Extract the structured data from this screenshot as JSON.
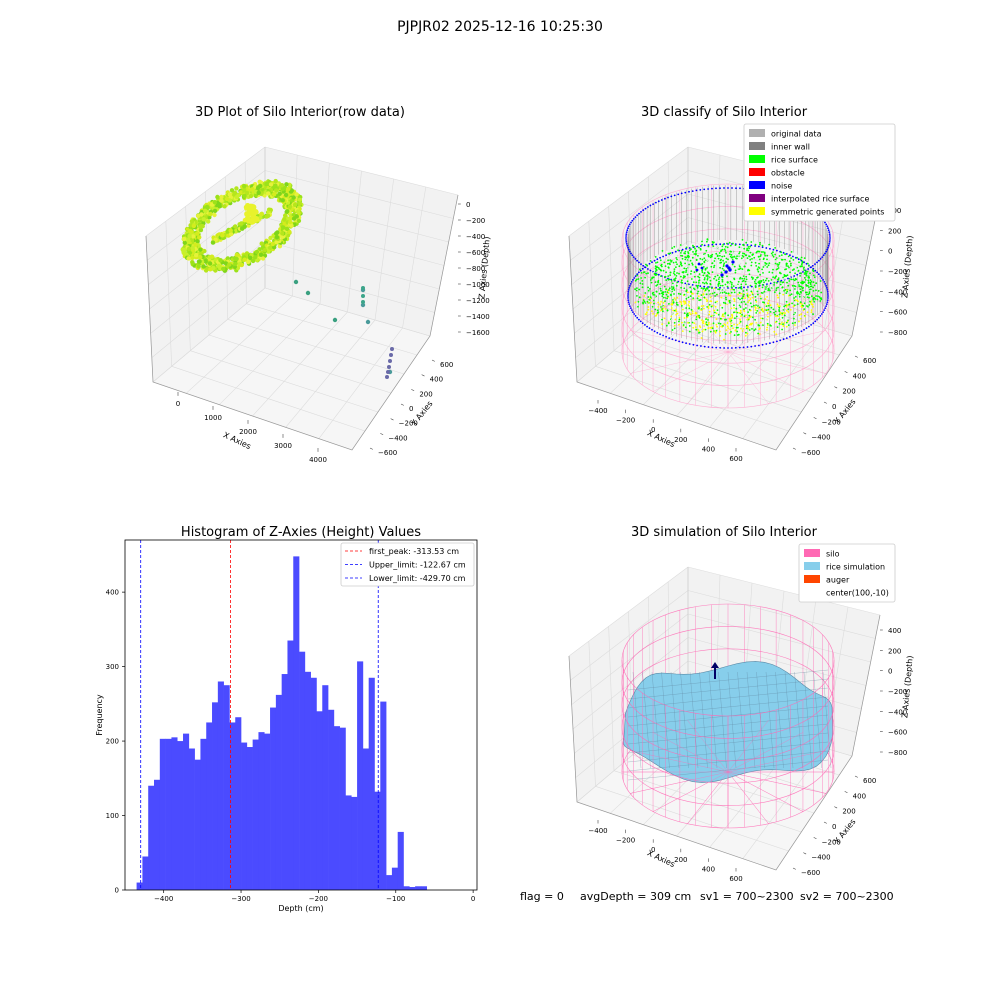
{
  "suptitle": "PJPJR02 2025-12-16 10:25:30",
  "footer": {
    "flag": "flag = 0",
    "avg_depth": "avgDepth = 309 cm",
    "sv1": "sv1 = 700~2300",
    "sv2": "sv2 = 700~2300"
  },
  "colors": {
    "lime": "#00ff00",
    "yellow": "#ffff00",
    "noise": "#0000ff",
    "silo_pink": "#ff69b4",
    "rice_blue": "#87ceeb",
    "auger": "#ff4500",
    "hist_bar": "#4b4bff"
  },
  "chart_data": [
    {
      "type": "scatter3d",
      "title": "3D Plot of Silo Interior(row data)",
      "xlabel": "X Axies",
      "ylabel": "Y Axies",
      "zlabel": "Z Axies (Depth)",
      "x_ticks": [
        "0",
        "1000",
        "2000",
        "3000",
        "4000"
      ],
      "y_ticks": [
        "600",
        "400",
        "200",
        "0",
        "−200",
        "−400",
        "−600"
      ],
      "z_ticks": [
        "0",
        "−200",
        "−400",
        "−600",
        "−800",
        "−1000",
        "−1200",
        "−1400",
        "−1600"
      ],
      "outlier_points": [
        {
          "x": 1300,
          "y": 100,
          "z": -1000
        },
        {
          "x": 1500,
          "y": 50,
          "z": -1100
        },
        {
          "x": 2000,
          "y": -200,
          "z": -1200
        },
        {
          "x": 2600,
          "y": -100,
          "z": -1050
        },
        {
          "x": 2600,
          "y": -150,
          "z": -1150
        },
        {
          "x": 2650,
          "y": -350,
          "z": -1350
        },
        {
          "x": 3400,
          "y": -600,
          "z": -1600
        }
      ]
    },
    {
      "type": "scatter3d",
      "title": "3D classify of Silo Interior",
      "xlabel": "X Axies",
      "ylabel": "Y Axies",
      "zlabel": "Z Axies (Depth)",
      "x_ticks": [
        "−400",
        "−200",
        "0",
        "200",
        "400",
        "600"
      ],
      "y_ticks": [
        "600",
        "400",
        "200",
        "0",
        "−200",
        "−400",
        "−600"
      ],
      "z_ticks": [
        "400",
        "200",
        "0",
        "−200",
        "−400",
        "−600",
        "−800"
      ],
      "legend": [
        {
          "label": "original data",
          "color": "#b0b0b0"
        },
        {
          "label": "inner wall",
          "color": "#808080"
        },
        {
          "label": "rice surface",
          "color": "#00ff00"
        },
        {
          "label": "obstacle",
          "color": "#ff0000"
        },
        {
          "label": "noise",
          "color": "#0000ff"
        },
        {
          "label": "interpolated rice surface",
          "color": "#800080"
        },
        {
          "label": "symmetric generated points",
          "color": "#ffff00"
        }
      ]
    },
    {
      "type": "bar",
      "title": "Histogram of Z-Axies (Height) Values",
      "xlabel": "Depth (cm)",
      "ylabel": "Frequency",
      "xlim": [
        -450,
        5
      ],
      "ylim": [
        0,
        470
      ],
      "x_ticks": [
        -400,
        -300,
        -200,
        -100,
        0
      ],
      "y_ticks": [
        0,
        100,
        200,
        300,
        400
      ],
      "bin_start": -435,
      "bin_width": 7.5,
      "values": [
        10,
        45,
        140,
        148,
        203,
        203,
        205,
        200,
        210,
        190,
        175,
        203,
        225,
        252,
        280,
        275,
        225,
        232,
        198,
        192,
        202,
        212,
        210,
        245,
        262,
        290,
        335,
        448,
        320,
        293,
        285,
        240,
        275,
        242,
        220,
        218,
        127,
        125,
        307,
        190,
        285,
        132,
        253,
        20,
        30,
        78,
        5,
        4,
        5,
        5
      ],
      "vlines": [
        {
          "x": -313.53,
          "label": "first_peak: -313.53 cm",
          "color": "#ff0000"
        },
        {
          "x": -122.67,
          "label": "Upper_limit: -122.67 cm",
          "color": "#0000ff"
        },
        {
          "x": -429.7,
          "label": "Lower_limit: -429.70 cm",
          "color": "#0000ff"
        }
      ],
      "legend_position": "top-right"
    },
    {
      "type": "surface3d",
      "title": "3D simulation of Silo Interior",
      "xlabel": "X Axies",
      "ylabel": "Y Axies",
      "zlabel": "Z Axies (Depth)",
      "x_ticks": [
        "−400",
        "−200",
        "0",
        "200",
        "400",
        "600"
      ],
      "y_ticks": [
        "600",
        "400",
        "200",
        "0",
        "−200",
        "−400",
        "−600"
      ],
      "z_ticks": [
        "400",
        "200",
        "0",
        "−200",
        "−400",
        "−600",
        "−800"
      ],
      "legend": [
        {
          "label": "silo",
          "color": "#ff69b4"
        },
        {
          "label": "rice simulation",
          "color": "#87ceeb"
        },
        {
          "label": "auger",
          "color": "#ff4500"
        },
        {
          "label": "center(100,-10)",
          "color": ""
        }
      ]
    }
  ]
}
